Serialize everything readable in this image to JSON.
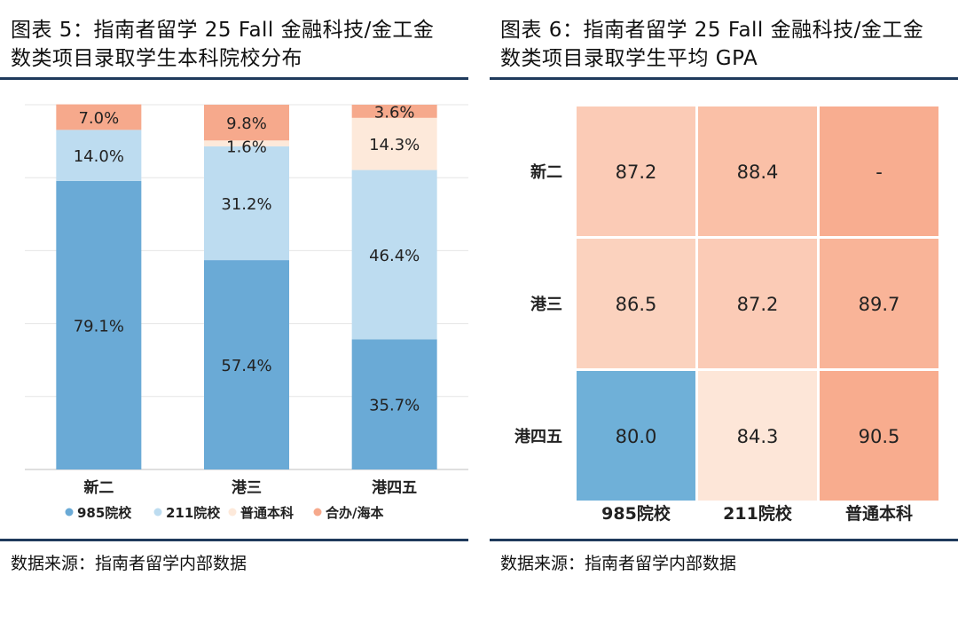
{
  "figure5": {
    "title_line1": "图表 5：指南者留学 25 Fall 金融科技/金工金",
    "title_line2": "数类项目录取学生本科院校分布",
    "source": "数据来源：指南者留学内部数据"
  },
  "figure6": {
    "title_line1": "图表 6：指南者留学 25 Fall 金融科技/金工金",
    "title_line2": "数类项目录取学生平均 GPA",
    "source": "数据来源：指南者留学内部数据"
  },
  "colors": {
    "c985": "#6aaad6",
    "c211": "#bddcf0",
    "putong": "#fde9da",
    "hebanhaiben": "#f6a98c",
    "rule": "#1f3a5c"
  },
  "chart_data": [
    {
      "type": "bar",
      "stacked": true,
      "categories": [
        "新二",
        "港三",
        "港四五"
      ],
      "series": [
        {
          "name": "985院校",
          "values": [
            79.1,
            57.4,
            35.7
          ],
          "labels": [
            "79.1%",
            "57.4%",
            "35.7%"
          ],
          "color": "#6aaad6"
        },
        {
          "name": "211院校",
          "values": [
            14.0,
            31.2,
            46.4
          ],
          "labels": [
            "14.0%",
            "31.2%",
            "46.4%"
          ],
          "color": "#bddcf0"
        },
        {
          "name": "普通本科",
          "values": [
            0,
            1.6,
            14.3
          ],
          "labels": [
            "",
            "1.6%",
            "14.3%"
          ],
          "color": "#fde9da"
        },
        {
          "name": "合办/海本",
          "values": [
            7.0,
            9.8,
            3.6
          ],
          "labels": [
            "7.0%",
            "9.8%",
            "3.6%"
          ],
          "color": "#f6a98c"
        }
      ],
      "ylim": [
        0,
        100
      ],
      "grid": true,
      "legend": "bottom"
    },
    {
      "type": "heatmap",
      "rows": [
        "新二",
        "港三",
        "港四五"
      ],
      "columns": [
        "985院校",
        "211院校",
        "普通本科"
      ],
      "values": [
        [
          87.2,
          88.4,
          null
        ],
        [
          86.5,
          87.2,
          89.7
        ],
        [
          80.0,
          84.3,
          90.5
        ]
      ],
      "labels": [
        [
          "87.2",
          "88.4",
          "-"
        ],
        [
          "86.5",
          "87.2",
          "89.7"
        ],
        [
          "80.0",
          "84.3",
          "90.5"
        ]
      ]
    }
  ]
}
